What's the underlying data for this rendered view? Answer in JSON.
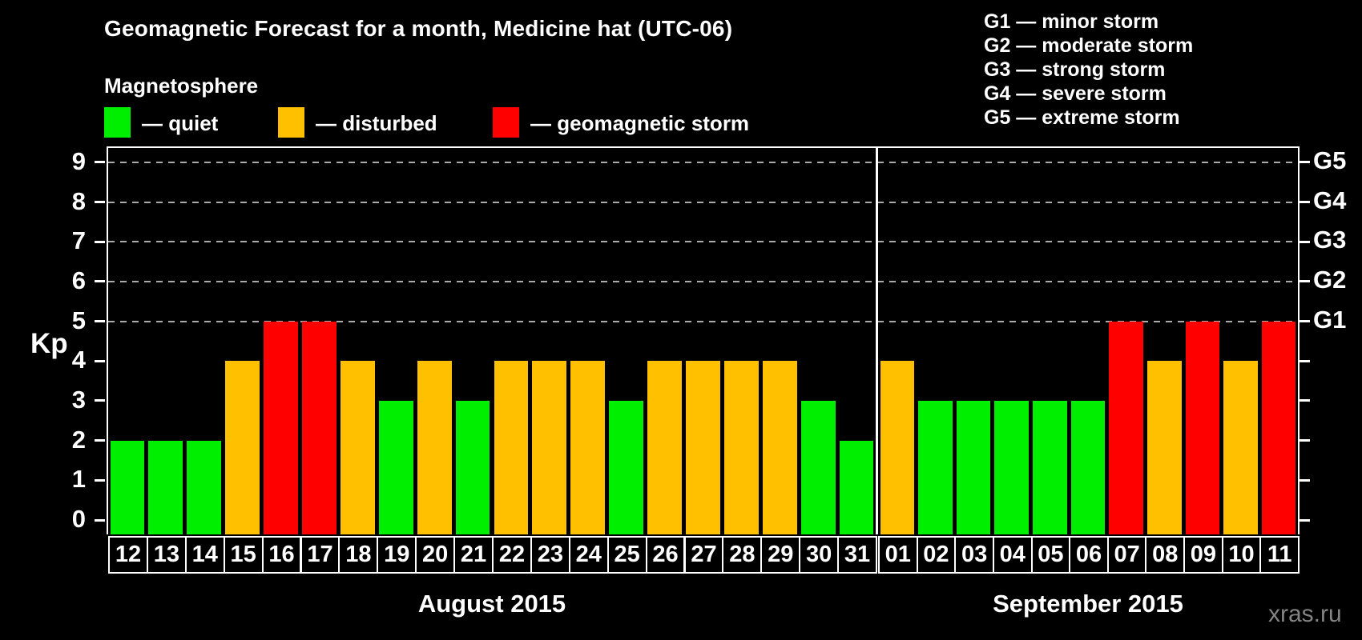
{
  "title": "Geomagnetic Forecast for a month, Medicine hat (UTC-06)",
  "legend": {
    "heading": "Magnetosphere",
    "items": [
      {
        "key": "quiet",
        "label": "— quiet",
        "color": "#00ee00"
      },
      {
        "key": "disturbed",
        "label": "— disturbed",
        "color": "#ffc000"
      },
      {
        "key": "storm",
        "label": "— geomagnetic storm",
        "color": "#ff0000"
      }
    ]
  },
  "g_legend": [
    "G1 — minor storm",
    "G2 — moderate storm",
    "G3 — strong storm",
    "G4 — severe storm",
    "G5 — extreme storm"
  ],
  "watermark": "xras.ru",
  "chart_data": {
    "type": "bar",
    "title": "Geomagnetic Forecast for a month, Medicine hat (UTC-06)",
    "ylabel": "Kp",
    "ylim": [
      0,
      9
    ],
    "y_ticks": [
      0,
      1,
      2,
      3,
      4,
      5,
      6,
      7,
      8,
      9
    ],
    "grid_levels": [
      5,
      6,
      7,
      8,
      9
    ],
    "right_axis": [
      {
        "value": 5,
        "label": "G1"
      },
      {
        "value": 6,
        "label": "G2"
      },
      {
        "value": 7,
        "label": "G3"
      },
      {
        "value": 8,
        "label": "G4"
      },
      {
        "value": 9,
        "label": "G5"
      }
    ],
    "series_colors": {
      "quiet": "#00ee00",
      "disturbed": "#ffc000",
      "storm": "#ff0000"
    },
    "months": [
      {
        "label": "August 2015",
        "days": [
          {
            "day": "12",
            "kp": 2,
            "state": "quiet"
          },
          {
            "day": "13",
            "kp": 2,
            "state": "quiet"
          },
          {
            "day": "14",
            "kp": 2,
            "state": "quiet"
          },
          {
            "day": "15",
            "kp": 4,
            "state": "disturbed"
          },
          {
            "day": "16",
            "kp": 5,
            "state": "storm"
          },
          {
            "day": "17",
            "kp": 5,
            "state": "storm"
          },
          {
            "day": "18",
            "kp": 4,
            "state": "disturbed"
          },
          {
            "day": "19",
            "kp": 3,
            "state": "quiet"
          },
          {
            "day": "20",
            "kp": 4,
            "state": "disturbed"
          },
          {
            "day": "21",
            "kp": 3,
            "state": "quiet"
          },
          {
            "day": "22",
            "kp": 4,
            "state": "disturbed"
          },
          {
            "day": "23",
            "kp": 4,
            "state": "disturbed"
          },
          {
            "day": "24",
            "kp": 4,
            "state": "disturbed"
          },
          {
            "day": "25",
            "kp": 3,
            "state": "quiet"
          },
          {
            "day": "26",
            "kp": 4,
            "state": "disturbed"
          },
          {
            "day": "27",
            "kp": 4,
            "state": "disturbed"
          },
          {
            "day": "28",
            "kp": 4,
            "state": "disturbed"
          },
          {
            "day": "29",
            "kp": 4,
            "state": "disturbed"
          },
          {
            "day": "30",
            "kp": 3,
            "state": "quiet"
          },
          {
            "day": "31",
            "kp": 2,
            "state": "quiet"
          }
        ]
      },
      {
        "label": "September 2015",
        "days": [
          {
            "day": "01",
            "kp": 4,
            "state": "disturbed"
          },
          {
            "day": "02",
            "kp": 3,
            "state": "quiet"
          },
          {
            "day": "03",
            "kp": 3,
            "state": "quiet"
          },
          {
            "day": "04",
            "kp": 3,
            "state": "quiet"
          },
          {
            "day": "05",
            "kp": 3,
            "state": "quiet"
          },
          {
            "day": "06",
            "kp": 3,
            "state": "quiet"
          },
          {
            "day": "07",
            "kp": 5,
            "state": "storm"
          },
          {
            "day": "08",
            "kp": 4,
            "state": "disturbed"
          },
          {
            "day": "09",
            "kp": 5,
            "state": "storm"
          },
          {
            "day": "10",
            "kp": 4,
            "state": "disturbed"
          },
          {
            "day": "11",
            "kp": 5,
            "state": "storm"
          }
        ]
      }
    ]
  }
}
